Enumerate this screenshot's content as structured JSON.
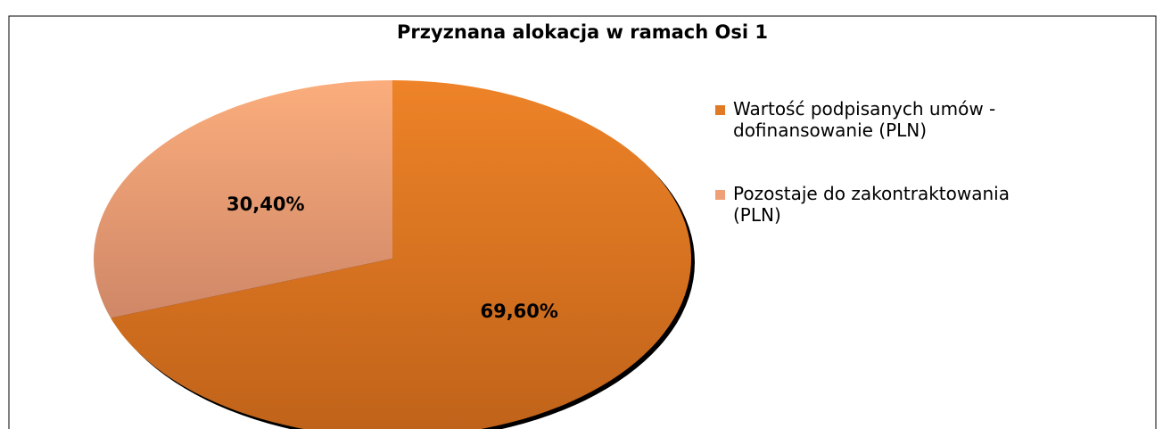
{
  "chart_data": {
    "type": "pie",
    "title": "Przyznana alokacja w ramach Osi 1",
    "categories": [
      "Wartość podpisanych umów - dofinansowanie (PLN)",
      "Pozostaje do zakontraktowania (PLN)"
    ],
    "values": [
      69.6,
      30.4
    ],
    "value_labels": [
      "69,60%",
      "30,40%"
    ],
    "colors": [
      "#e07a24",
      "#f0a077"
    ],
    "legend": "right"
  }
}
